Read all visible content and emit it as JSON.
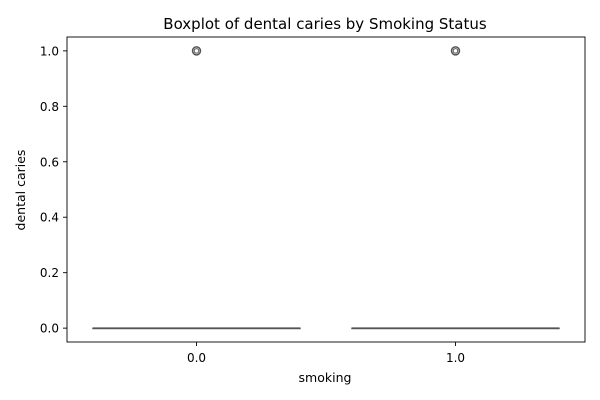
{
  "chart_data": {
    "type": "box",
    "title": "Boxplot of dental caries by Smoking Status",
    "xlabel": "smoking",
    "ylabel": "dental caries",
    "categories": [
      "0.0",
      "1.0"
    ],
    "ylim": [
      -0.05,
      1.05
    ],
    "yticks": [
      0.0,
      0.2,
      0.4,
      0.6,
      0.8,
      1.0
    ],
    "ytick_labels": [
      "0.0",
      "0.2",
      "0.4",
      "0.6",
      "0.8",
      "1.0"
    ],
    "grid": false,
    "boxes": [
      {
        "category": "0.0",
        "min": 0.0,
        "q1": 0.0,
        "median": 0.0,
        "q3": 0.0,
        "max": 0.0,
        "outliers": [
          1.0
        ]
      },
      {
        "category": "1.0",
        "min": 0.0,
        "q1": 0.0,
        "median": 0.0,
        "q3": 0.0,
        "max": 0.0,
        "outliers": [
          1.0
        ]
      }
    ],
    "box_color": "#3a6fa6",
    "line_color": "#555555"
  }
}
